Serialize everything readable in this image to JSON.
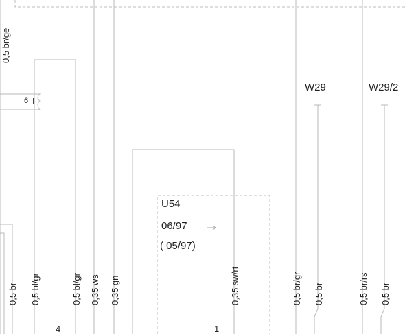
{
  "labels": {
    "top_wire": "0,5 br/ge",
    "pin": "6",
    "w29": "W29",
    "w29_2": "W29/2",
    "module": "U54",
    "date_from": "06/97",
    "date_to": "( 05/97)",
    "connector_a": "4",
    "connector_b": "1",
    "wires": [
      "0,5 br",
      "0,5 bl/gr",
      "0,5 bl/gr",
      "0,35 ws",
      "0,35 gn",
      "0,35 sw/rt",
      "0,5 br/gr",
      "0,5 br",
      "0,5 br/rs",
      "0,5 br"
    ]
  }
}
